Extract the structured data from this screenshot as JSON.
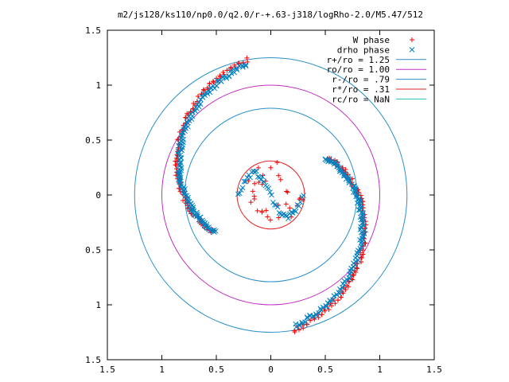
{
  "chart_data": {
    "type": "scatter",
    "title": "m2/js128/ks110/np0.0/q2.0/r-+.63-j318/logRho-2.0/M5.47/512",
    "xlabel": "",
    "ylabel": "",
    "xlim": [
      -1.5,
      1.5
    ],
    "ylim": [
      -1.5,
      1.5
    ],
    "x_ticks": [
      {
        "value": -1.5,
        "label": "1.5"
      },
      {
        "value": -1.0,
        "label": "1"
      },
      {
        "value": -0.5,
        "label": "0.5"
      },
      {
        "value": 0.0,
        "label": "0"
      },
      {
        "value": 0.5,
        "label": "0.5"
      },
      {
        "value": 1.0,
        "label": "1"
      },
      {
        "value": 1.5,
        "label": "1.5"
      }
    ],
    "y_ticks": [
      {
        "value": -1.5,
        "label": "1.5"
      },
      {
        "value": -1.0,
        "label": "1"
      },
      {
        "value": -0.5,
        "label": "0.5"
      },
      {
        "value": 0.0,
        "label": "0"
      },
      {
        "value": 0.5,
        "label": "0.5"
      },
      {
        "value": 1.0,
        "label": "1"
      },
      {
        "value": 1.5,
        "label": "1.5"
      }
    ],
    "grid": false,
    "legend_position": "top-right",
    "series": [
      {
        "name": "W phase",
        "marker": "plus",
        "color": "#ff0000",
        "arcs": [
          {
            "r_start": 1.25,
            "r_end": 0.63,
            "theta_start_deg": 100,
            "theta_end_deg": 212,
            "count": 60
          },
          {
            "r_start": 1.25,
            "r_end": 0.63,
            "theta_start_deg": -80,
            "theta_end_deg": 32,
            "count": 60
          }
        ],
        "cluster": {
          "cx": 0.03,
          "cy": 0.03,
          "radius": 0.28,
          "count": 32
        }
      },
      {
        "name": "drho phase",
        "marker": "cross",
        "color": "#0080c0",
        "arcs": [
          {
            "r_start": 1.21,
            "r_end": 0.61,
            "theta_start_deg": 101,
            "theta_end_deg": 213,
            "count": 80
          },
          {
            "r_start": 1.21,
            "r_end": 0.61,
            "theta_start_deg": -79,
            "theta_end_deg": 33,
            "count": 80
          }
        ],
        "inner_curve": {
          "count": 44,
          "amplitude": 0.22
        }
      },
      {
        "name": "r+/ro = 1.25",
        "type": "circle",
        "r": 1.25,
        "color": "#2a90c8"
      },
      {
        "name": "ro/ro = 1.00",
        "type": "circle",
        "r": 1.0,
        "color": "#c030c0"
      },
      {
        "name": "r-/ro = .79",
        "type": "circle",
        "r": 0.79,
        "color": "#2a90c8"
      },
      {
        "name": "r*/ro = .31",
        "type": "circle",
        "r": 0.31,
        "color": "#e02020"
      },
      {
        "name": "rc/ro = NaN",
        "type": "circle",
        "r": null,
        "color": "#20c0c0"
      }
    ]
  }
}
